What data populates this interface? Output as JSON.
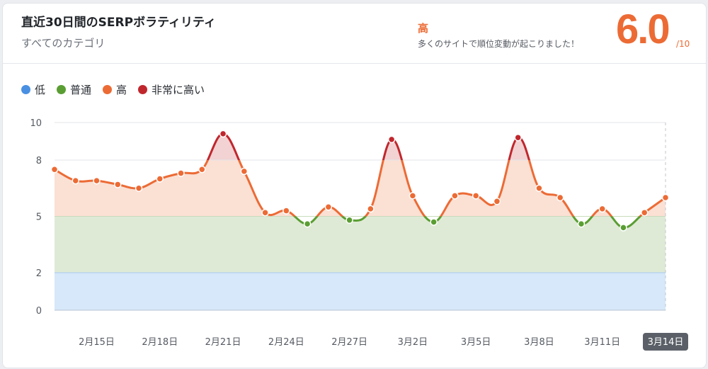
{
  "header": {
    "title": "直近30日間のSERPボラティリティ",
    "subtitle": "すべてのカテゴリ",
    "level_label": "高",
    "message": "多くのサイトで順位変動が起こりました！",
    "score": "6.0",
    "score_max": "/10"
  },
  "legend": [
    {
      "label": "低",
      "color": "#4a90e2"
    },
    {
      "label": "普通",
      "color": "#5a9e33"
    },
    {
      "label": "高",
      "color": "#ec6b35"
    },
    {
      "label": "非常に高い",
      "color": "#c0272d"
    }
  ],
  "colors": {
    "low_band": "#d6e8f9",
    "normal_band": "#dfeaD6",
    "high_band": "#fbe0d4",
    "very_high_band": "#f2d2d3",
    "line": "#ec6b35",
    "accent": "#ec6b35"
  },
  "chart_data": {
    "type": "line",
    "title": "直近30日間のSERPボラティリティ",
    "ylim": [
      0,
      10
    ],
    "yticks": [
      0,
      2,
      5,
      8,
      10
    ],
    "x_tick_labels": [
      "2月15日",
      "2月18日",
      "2月21日",
      "2月24日",
      "2月27日",
      "3月2日",
      "3月5日",
      "3月8日",
      "3月11日"
    ],
    "x_tick_indices": [
      2,
      5,
      8,
      11,
      14,
      17,
      20,
      23,
      26
    ],
    "selected_label": "3月14日",
    "bands": [
      {
        "name": "低",
        "from": 0,
        "to": 2
      },
      {
        "name": "普通",
        "from": 2,
        "to": 5
      },
      {
        "name": "高",
        "from": 5,
        "to": 8
      },
      {
        "name": "非常に高い",
        "from": 8,
        "to": 10
      }
    ],
    "series": [
      {
        "values": [
          7.5,
          6.9,
          6.9,
          6.7,
          6.5,
          7.0,
          7.3,
          7.5,
          9.4,
          7.4,
          5.2,
          5.3,
          4.6,
          5.5,
          4.8,
          5.4,
          9.1,
          6.1,
          4.7,
          6.1,
          6.1,
          5.8,
          9.2,
          6.5,
          6.0,
          4.6,
          5.4,
          4.4,
          5.2,
          6.0
        ]
      }
    ]
  }
}
